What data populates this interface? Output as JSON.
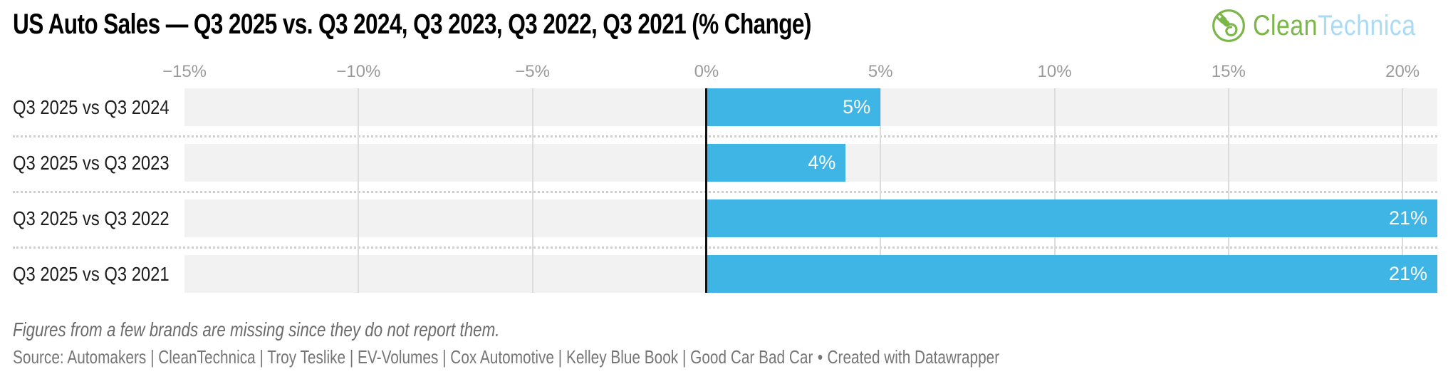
{
  "header": {
    "title": "US Auto Sales — Q3 2025 vs. Q3 2024, Q3 2023, Q3 2022, Q3 2021 (% Change)",
    "logo": {
      "brand_green": "Clean",
      "brand_blue": "Technica",
      "green": "#7AB648",
      "blue": "#A9DBF5"
    }
  },
  "chart_data": {
    "type": "bar",
    "orientation": "horizontal",
    "title": "US Auto Sales — Q3 2025 vs. Q3 2024, Q3 2023, Q3 2022, Q3 2021 (% Change)",
    "categories": [
      "Q3 2025 vs Q3 2024",
      "Q3 2025 vs Q3 2023",
      "Q3 2025 vs Q3 2022",
      "Q3 2025 vs Q3 2021"
    ],
    "values": [
      5,
      4,
      21,
      21
    ],
    "value_labels": [
      "5%",
      "4%",
      "21%",
      "21%"
    ],
    "unit": "%",
    "xlim": [
      -15,
      21
    ],
    "ticks": [
      {
        "value": -15,
        "label": "−15%"
      },
      {
        "value": -10,
        "label": "−10%"
      },
      {
        "value": -5,
        "label": "−5%"
      },
      {
        "value": 0,
        "label": "0%"
      },
      {
        "value": 5,
        "label": "5%"
      },
      {
        "value": 10,
        "label": "10%"
      },
      {
        "value": 15,
        "label": "15%"
      },
      {
        "value": 20,
        "label": "20%"
      }
    ],
    "bar_color": "#3FB5E5",
    "track_color": "#f2f2f2",
    "zero_line_color": "#111111",
    "grid": true,
    "legend": "none",
    "xlabel": "",
    "ylabel": ""
  },
  "footer": {
    "footnote": "Figures from a few brands are missing since they do not report them.",
    "source": "Source: Automakers | CleanTechnica | Troy Teslike | EV-Volumes | Cox Automotive | Kelley Blue Book | Good Car Bad Car",
    "separator": "•",
    "attribution": "Created with Datawrapper"
  }
}
